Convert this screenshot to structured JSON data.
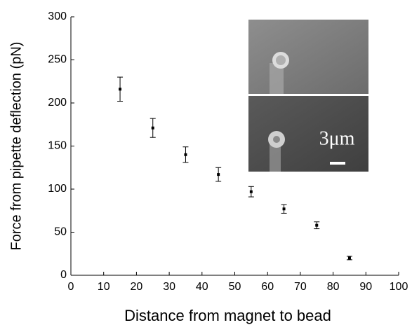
{
  "chart_data": {
    "type": "scatter",
    "x_label": "Distance from magnet to bead",
    "y_label": "Force from pipette deflection (pN)",
    "series": [
      {
        "x": [
          15,
          25,
          35,
          45,
          55,
          65,
          75,
          85
        ],
        "values": [
          216,
          171,
          140,
          117,
          97,
          77,
          58,
          20
        ],
        "errors": [
          14,
          11,
          9,
          8,
          6,
          5,
          4,
          2
        ],
        "color": "#000000"
      }
    ],
    "xlim": [
      0,
      100
    ],
    "xticks": [
      0,
      10,
      20,
      30,
      40,
      50,
      60,
      70,
      80,
      90,
      100
    ],
    "ylim": [
      0,
      300
    ],
    "yticks": [
      0,
      50,
      100,
      150,
      200,
      250,
      300
    ],
    "inset_scale_label": "3μm"
  }
}
